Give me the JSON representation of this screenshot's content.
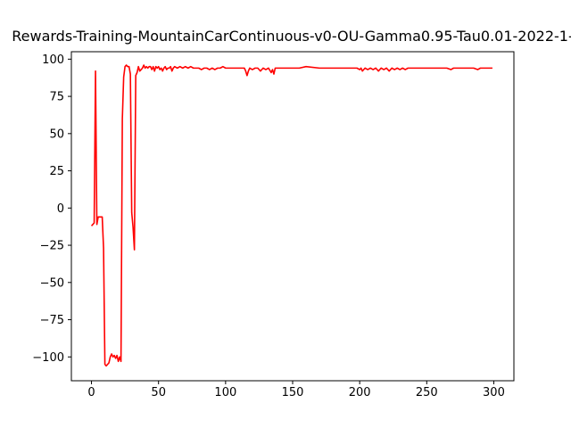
{
  "chart_data": {
    "type": "line",
    "title": "Rewards-Training-MountainCarContinuous-v0-OU-Gamma0.95-Tau0.01-2022-1-",
    "xlabel": "",
    "ylabel": "",
    "xlim": [
      -15,
      315
    ],
    "ylim": [
      -116,
      105
    ],
    "xticks": [
      0,
      50,
      100,
      150,
      200,
      250,
      300
    ],
    "yticks": [
      -100,
      -75,
      -50,
      -25,
      0,
      25,
      50,
      75,
      100
    ],
    "grid": false,
    "legend": "none",
    "series": [
      {
        "color": "#ff0000",
        "points": [
          [
            0,
            -12
          ],
          [
            1,
            -11
          ],
          [
            2,
            -10
          ],
          [
            3,
            92
          ],
          [
            4,
            -11
          ],
          [
            5,
            -6
          ],
          [
            7,
            -6
          ],
          [
            8,
            -6
          ],
          [
            9,
            -27
          ],
          [
            10,
            -105
          ],
          [
            11,
            -106
          ],
          [
            12,
            -105
          ],
          [
            13,
            -104
          ],
          [
            14,
            -100
          ],
          [
            15,
            -98
          ],
          [
            16,
            -100
          ],
          [
            17,
            -99
          ],
          [
            18,
            -101
          ],
          [
            19,
            -99
          ],
          [
            20,
            -103
          ],
          [
            21,
            -100
          ],
          [
            22,
            -103
          ],
          [
            23,
            60
          ],
          [
            24,
            88
          ],
          [
            25,
            95
          ],
          [
            26,
            96
          ],
          [
            27,
            95
          ],
          [
            28,
            95
          ],
          [
            29,
            90
          ],
          [
            30,
            -3
          ],
          [
            31,
            -13
          ],
          [
            32,
            -28
          ],
          [
            33,
            89
          ],
          [
            34,
            91
          ],
          [
            35,
            95
          ],
          [
            36,
            92
          ],
          [
            37,
            93
          ],
          [
            38,
            94
          ],
          [
            39,
            96
          ],
          [
            40,
            94
          ],
          [
            41,
            95
          ],
          [
            42,
            94
          ],
          [
            43,
            95
          ],
          [
            44,
            95
          ],
          [
            45,
            93
          ],
          [
            46,
            95
          ],
          [
            47,
            92
          ],
          [
            48,
            95
          ],
          [
            49,
            94
          ],
          [
            50,
            95
          ],
          [
            51,
            93
          ],
          [
            52,
            94
          ],
          [
            53,
            92
          ],
          [
            54,
            94
          ],
          [
            55,
            95
          ],
          [
            56,
            93
          ],
          [
            57,
            94
          ],
          [
            58,
            94
          ],
          [
            59,
            95
          ],
          [
            60,
            92
          ],
          [
            61,
            94
          ],
          [
            62,
            95
          ],
          [
            64,
            94
          ],
          [
            66,
            95
          ],
          [
            68,
            94
          ],
          [
            70,
            95
          ],
          [
            72,
            94
          ],
          [
            74,
            95
          ],
          [
            76,
            94
          ],
          [
            78,
            94
          ],
          [
            80,
            94
          ],
          [
            82,
            93
          ],
          [
            84,
            94
          ],
          [
            86,
            94
          ],
          [
            88,
            93
          ],
          [
            90,
            94
          ],
          [
            92,
            93
          ],
          [
            94,
            94
          ],
          [
            96,
            94
          ],
          [
            98,
            95
          ],
          [
            100,
            94
          ],
          [
            105,
            94
          ],
          [
            110,
            94
          ],
          [
            114,
            94
          ],
          [
            115,
            92
          ],
          [
            116,
            89
          ],
          [
            117,
            92
          ],
          [
            118,
            94
          ],
          [
            120,
            93
          ],
          [
            122,
            94
          ],
          [
            124,
            94
          ],
          [
            126,
            92
          ],
          [
            128,
            94
          ],
          [
            130,
            93
          ],
          [
            132,
            94
          ],
          [
            134,
            91
          ],
          [
            135,
            93
          ],
          [
            136,
            90
          ],
          [
            137,
            94
          ],
          [
            140,
            94
          ],
          [
            145,
            94
          ],
          [
            150,
            94
          ],
          [
            155,
            94
          ],
          [
            160,
            95
          ],
          [
            170,
            94
          ],
          [
            180,
            94
          ],
          [
            190,
            94
          ],
          [
            198,
            94
          ],
          [
            200,
            93
          ],
          [
            201,
            94
          ],
          [
            202,
            92
          ],
          [
            204,
            94
          ],
          [
            206,
            93
          ],
          [
            208,
            94
          ],
          [
            210,
            93
          ],
          [
            212,
            94
          ],
          [
            214,
            92
          ],
          [
            216,
            94
          ],
          [
            218,
            93
          ],
          [
            220,
            94
          ],
          [
            222,
            92
          ],
          [
            224,
            94
          ],
          [
            226,
            93
          ],
          [
            228,
            94
          ],
          [
            230,
            93
          ],
          [
            232,
            94
          ],
          [
            234,
            93
          ],
          [
            236,
            94
          ],
          [
            240,
            94
          ],
          [
            245,
            94
          ],
          [
            250,
            94
          ],
          [
            255,
            94
          ],
          [
            260,
            94
          ],
          [
            265,
            94
          ],
          [
            268,
            93
          ],
          [
            270,
            94
          ],
          [
            275,
            94
          ],
          [
            280,
            94
          ],
          [
            285,
            94
          ],
          [
            288,
            93
          ],
          [
            290,
            94
          ],
          [
            295,
            94
          ],
          [
            299,
            94
          ]
        ]
      }
    ]
  }
}
